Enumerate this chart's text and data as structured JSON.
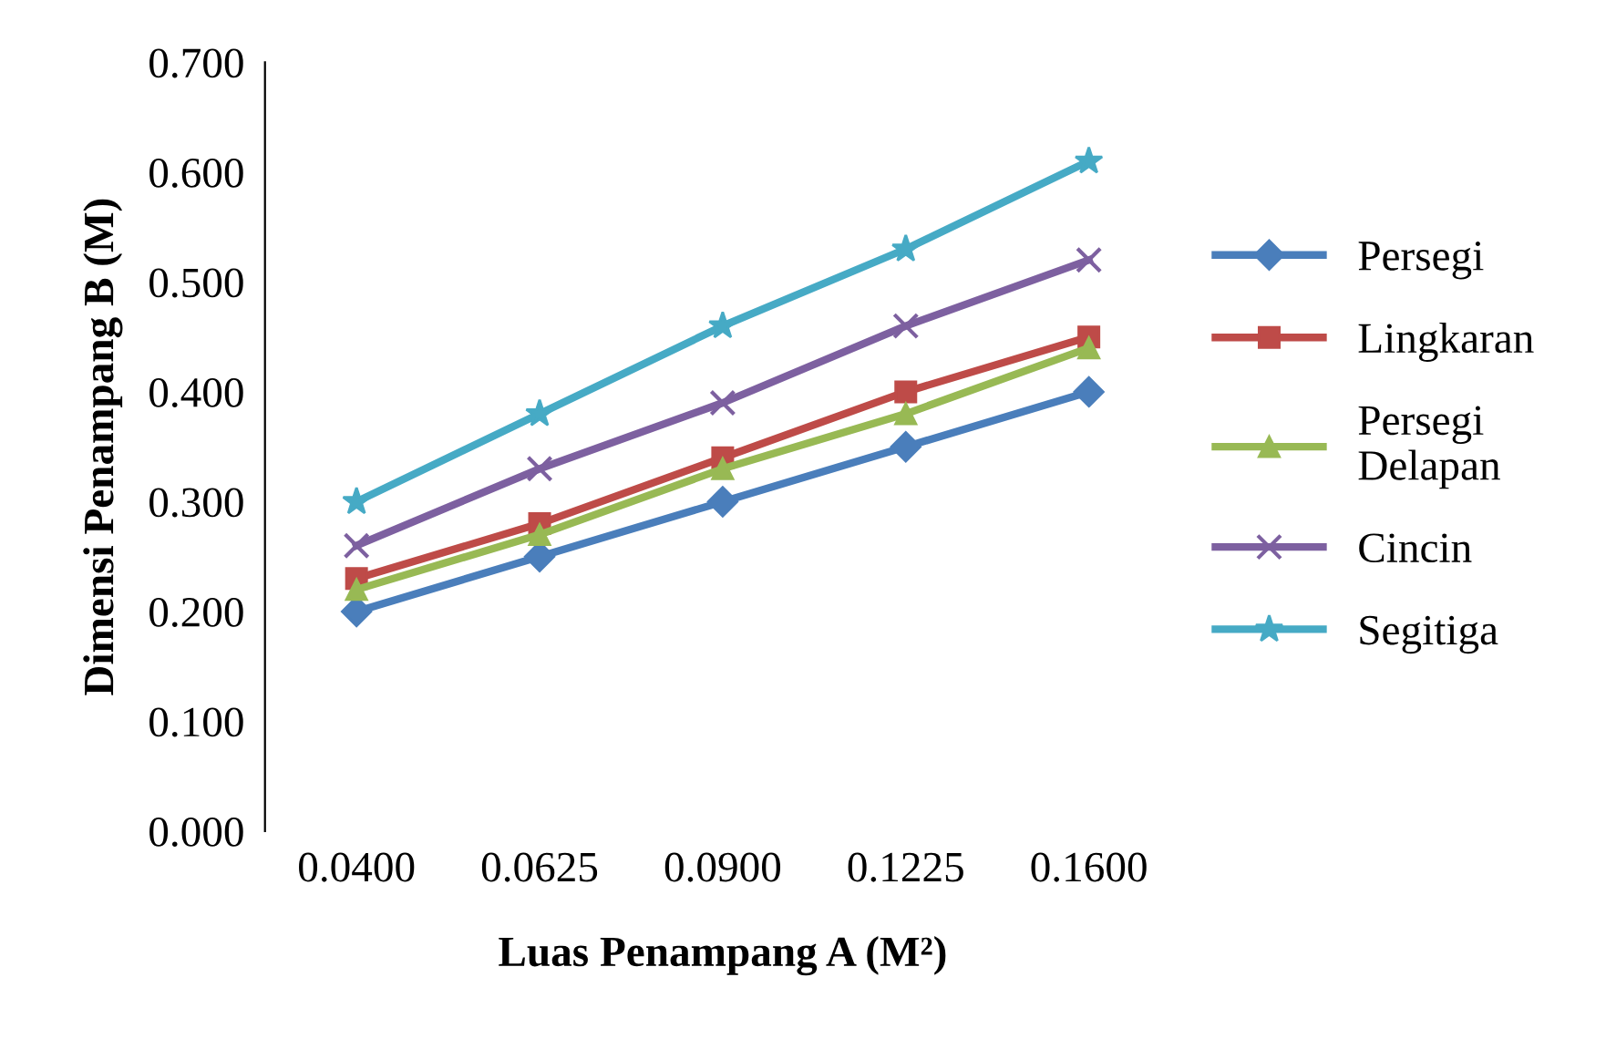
{
  "chart_data": {
    "type": "line",
    "xlabel": "Luas Penampang A (M²)",
    "ylabel": "Dimensi Penampang B (M)",
    "categories": [
      "0.0400",
      "0.0625",
      "0.0900",
      "0.1225",
      "0.1600"
    ],
    "series": [
      {
        "name": "Persegi",
        "color": "#4a7ebb",
        "marker": "diamond",
        "values": [
          0.2,
          0.25,
          0.3,
          0.35,
          0.4
        ]
      },
      {
        "name": "Lingkaran",
        "color": "#be4b48",
        "marker": "square",
        "values": [
          0.23,
          0.28,
          0.34,
          0.4,
          0.45
        ]
      },
      {
        "name": "Persegi\nDelapan",
        "color": "#98b954",
        "marker": "triangle",
        "values": [
          0.22,
          0.27,
          0.33,
          0.38,
          0.44
        ]
      },
      {
        "name": "Cincin",
        "color": "#7d60a0",
        "marker": "cross",
        "values": [
          0.26,
          0.33,
          0.39,
          0.46,
          0.52
        ]
      },
      {
        "name": "Segitiga",
        "color": "#46aac5",
        "marker": "star",
        "values": [
          0.3,
          0.38,
          0.46,
          0.53,
          0.61
        ]
      }
    ],
    "ylim": [
      0,
      0.7
    ],
    "yticks": [
      {
        "value": 0,
        "label": "0.000"
      },
      {
        "value": 0.1,
        "label": "0.100"
      },
      {
        "value": 0.2,
        "label": "0.200"
      },
      {
        "value": 0.3,
        "label": "0.300"
      },
      {
        "value": 0.4,
        "label": "0.400"
      },
      {
        "value": 0.5,
        "label": "0.500"
      },
      {
        "value": 0.6,
        "label": "0.600"
      },
      {
        "value": 0.7,
        "label": "0.700"
      }
    ],
    "grid": false,
    "legend": "right",
    "line_style": "solid"
  }
}
